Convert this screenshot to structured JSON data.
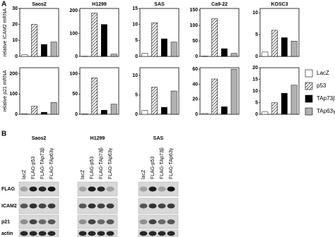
{
  "panel_a": "A",
  "panel_b": "B",
  "legend": [
    {
      "name": "LacZ",
      "color": "#ffffff"
    },
    {
      "name": "p53",
      "color": "#ffffff",
      "pattern": "hatch"
    },
    {
      "name": "TAp73β",
      "color": "#000000"
    },
    {
      "name": "TAp63γ",
      "color": "#b0b0b0"
    }
  ],
  "chart_data": [
    {
      "type": "bar",
      "title": "Saos2",
      "ylabel": "relative ICAM2 mRNA",
      "values": [
        1,
        20,
        7.5,
        9
      ],
      "ylim": [
        0,
        30
      ],
      "yticks": [
        0,
        10,
        20,
        30
      ]
    },
    {
      "type": "bar",
      "title": "H1299",
      "values": [
        1,
        190,
        140,
        10
      ],
      "ylim": [
        0,
        210
      ],
      "yticks": [
        0,
        100,
        200
      ]
    },
    {
      "type": "bar",
      "title": "SAS",
      "values": [
        1,
        10.5,
        5.5,
        4.5
      ],
      "ylim": [
        0,
        15
      ],
      "yticks": [
        0,
        5,
        10,
        15
      ]
    },
    {
      "type": "bar",
      "title": "Ca9-22",
      "values": [
        1,
        122,
        25,
        10
      ],
      "ylim": [
        0,
        155
      ],
      "yticks": [
        0,
        50,
        100,
        150
      ]
    },
    {
      "type": "bar",
      "title": "KOSC3",
      "values": [
        1,
        6,
        4.3,
        3.5
      ],
      "ylim": [
        0,
        11
      ],
      "yticks": [
        0,
        5,
        10
      ]
    },
    {
      "type": "bar",
      "ylabel": "relative p21 mRNA",
      "values": [
        3,
        40,
        10,
        58
      ],
      "ylim": [
        0,
        230
      ],
      "yticks": [
        0,
        100,
        200
      ]
    },
    {
      "type": "bar",
      "values": [
        1,
        90,
        10,
        25
      ],
      "ylim": [
        0,
        115
      ],
      "yticks": [
        0,
        50,
        100
      ]
    },
    {
      "type": "bar",
      "values": [
        1,
        7,
        1.8,
        6
      ],
      "ylim": [
        0,
        12
      ],
      "yticks": [
        0,
        5,
        10
      ]
    },
    {
      "type": "bar",
      "values": [
        1,
        47,
        10,
        60
      ],
      "ylim": [
        0,
        62
      ],
      "yticks": [
        0,
        20,
        40,
        60
      ]
    },
    {
      "type": "bar",
      "values": [
        1,
        5,
        9,
        12.5
      ],
      "ylim": [
        0,
        20
      ],
      "yticks": [
        0,
        5,
        10,
        15,
        20
      ]
    }
  ],
  "blot": {
    "rows": [
      "FLAG",
      "ICAM2",
      "p21",
      "actin"
    ],
    "panels": [
      {
        "title": "Saos2",
        "lanes": [
          "lacZ",
          "FLAG-p53",
          "FLAG-TAp73β",
          "FLAG-TAp63γ"
        ]
      },
      {
        "title": "H1299",
        "lanes": [
          "lacZ",
          "FLAG-p53",
          "FLAG-TAp73β",
          "FLAG-TAp63γ"
        ]
      },
      {
        "title": "SAS",
        "lanes": [
          "lacZ",
          "FLAG-p53",
          "FLAG-TAp73β",
          "FLAG-TAp63γ"
        ]
      }
    ]
  }
}
